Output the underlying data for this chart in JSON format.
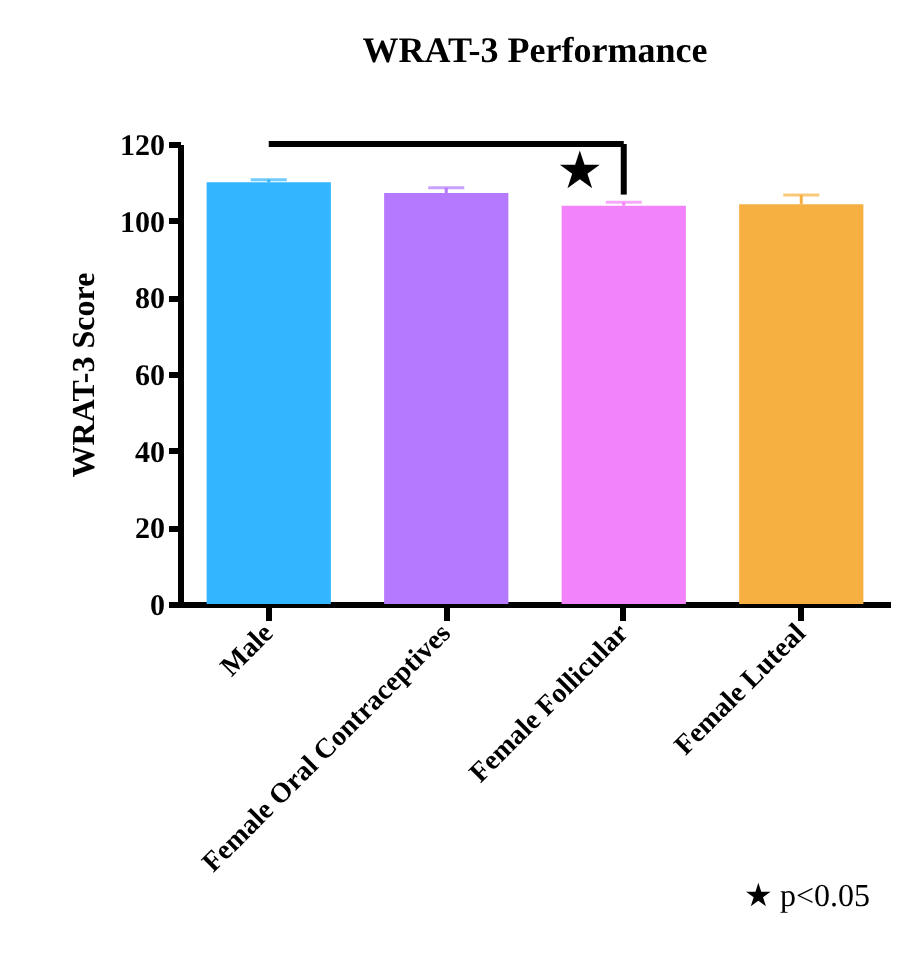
{
  "chart_data": {
    "type": "bar",
    "title": "WRAT-3 Performance",
    "ylabel": "WRAT-3 Score",
    "categories": [
      "Male",
      "Female Oral Contraceptives",
      "Female Follicular",
      "Female Luteal"
    ],
    "values": [
      110.0,
      107.2,
      103.9,
      104.3
    ],
    "colors": [
      "#33b5ff",
      "#b579ff",
      "#f383fb",
      "#f6b042"
    ],
    "errors": [
      [
        110.0,
        110.7
      ],
      [
        107.2,
        108.6
      ],
      [
        103.9,
        104.8
      ],
      [
        104.3,
        106.7
      ]
    ],
    "ylim": [
      0,
      120
    ],
    "yticks": [
      0,
      20,
      40,
      60,
      80,
      100,
      120
    ],
    "grid": false,
    "annotations": [
      "★",
      "★  p<0.05"
    ]
  }
}
